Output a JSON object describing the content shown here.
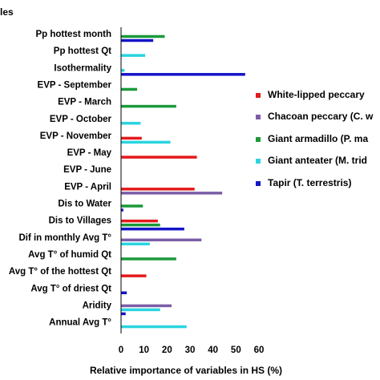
{
  "chart_data": {
    "type": "bar",
    "orientation": "horizontal",
    "ylabel_partial": "les",
    "xlabel": "Relative importance of variables in HS (%)",
    "xlim": [
      0,
      60
    ],
    "xticks": [
      0,
      10,
      20,
      30,
      40,
      50,
      60
    ],
    "xtick_labels": [
      "0",
      "10",
      "20",
      "30",
      "40",
      "50",
      "60"
    ],
    "grid": false,
    "legend_position": "right",
    "categories": [
      "Pp hottest month",
      "Pp hottest Qt",
      "Isothermality",
      "EVP - September",
      "EVP - March",
      "EVP - October",
      "EVP - November",
      "EVP - May",
      "EVP - June",
      "EVP - April",
      "Dis to Water",
      "Dis to Villages",
      "Dif in monthly Avg T°",
      "Avg T° of humid Qt",
      "Avg T° of the hottest Qt",
      "Avg T° of driest Qt",
      "Aridity",
      "Annual Avg T°"
    ],
    "series": [
      {
        "name": "White-lipped peccary",
        "legend_label": "White-lipped peccary",
        "color": "#e41a1c",
        "values": [
          0,
          0,
          0,
          0,
          0,
          0,
          9,
          33,
          0,
          32,
          0,
          16,
          0,
          0,
          11,
          0,
          0,
          0
        ]
      },
      {
        "name": "Chacoan peccary",
        "legend_label": "Chacoan peccary (C. w",
        "color": "#7b5ea7",
        "values": [
          0,
          0,
          0,
          0,
          0,
          0,
          0,
          0,
          0,
          44,
          0,
          0,
          35,
          0,
          0,
          0,
          22,
          0
        ]
      },
      {
        "name": "Giant armadillo",
        "legend_label": "Giant armadillo (P. ma",
        "color": "#1a9a3a",
        "values": [
          19,
          0,
          0,
          7,
          24,
          0,
          0,
          0,
          0,
          0,
          9.5,
          17,
          0,
          24,
          0,
          0,
          0,
          0
        ]
      },
      {
        "name": "Giant anteater",
        "legend_label": "Giant anteater (M. trid",
        "color": "#2ad4e0",
        "values": [
          0,
          10.5,
          1.5,
          0,
          0,
          8.5,
          21.5,
          0,
          0,
          0,
          0,
          0,
          12.5,
          0,
          0,
          0,
          17,
          28.5
        ]
      },
      {
        "name": "Tapir",
        "legend_label": "Tapir (T. terrestris)",
        "color": "#1414c8",
        "values": [
          14,
          0,
          54,
          0,
          0,
          0,
          0,
          0,
          0,
          0,
          1,
          27.5,
          0,
          0,
          0,
          2.5,
          2,
          0
        ]
      }
    ]
  }
}
